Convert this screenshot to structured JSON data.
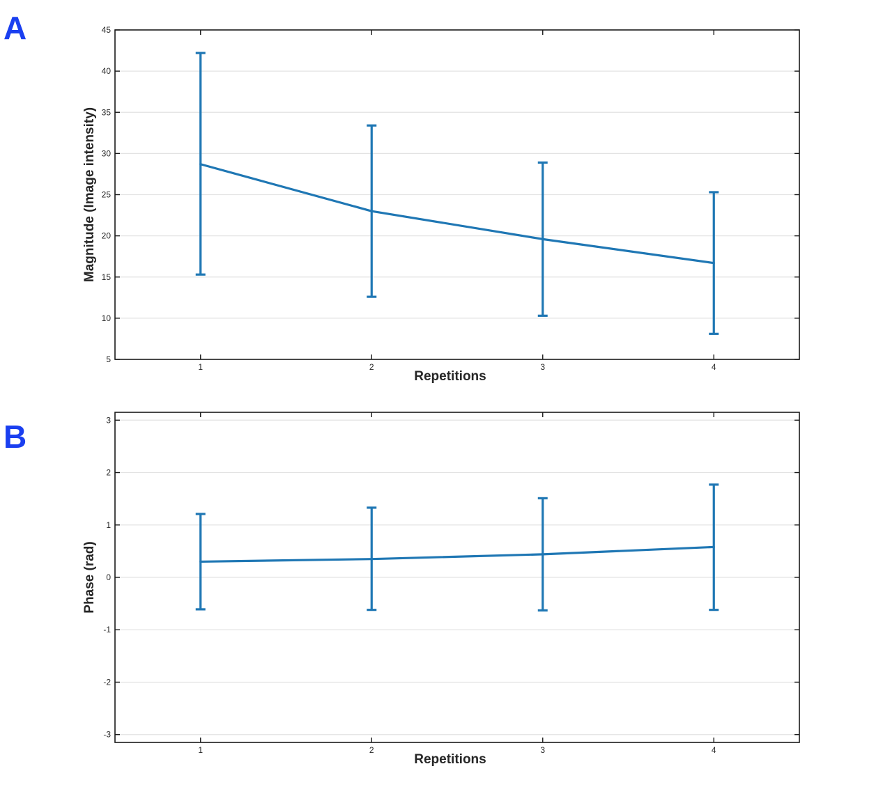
{
  "panels": [
    {
      "letter": "A"
    },
    {
      "letter": "B"
    }
  ],
  "colors": {
    "series": "#1f77b4",
    "panel_letter": "#1a3ff0",
    "grid": "#e3e3e3",
    "axes": "#1a1a1a"
  },
  "chart_data": [
    {
      "type": "line",
      "x": [
        1,
        2,
        3,
        4
      ],
      "series": [
        {
          "values": [
            28.7,
            23.0,
            19.6,
            16.7
          ],
          "error_low": [
            15.3,
            12.6,
            10.3,
            8.1
          ],
          "error_high": [
            42.2,
            33.4,
            28.9,
            25.3
          ]
        }
      ],
      "title": "",
      "xlabel": "Repetitions",
      "ylabel": "Magnitude (Image intensity)",
      "xlim": [
        0.5,
        4.5
      ],
      "ylim": [
        5,
        45
      ],
      "xticks": [
        1,
        2,
        3,
        4
      ],
      "yticks": [
        5,
        10,
        15,
        20,
        25,
        30,
        35,
        40,
        45
      ],
      "grid": "horizontal",
      "legend": "none"
    },
    {
      "type": "line",
      "x": [
        1,
        2,
        3,
        4
      ],
      "series": [
        {
          "values": [
            0.3,
            0.35,
            0.44,
            0.58
          ],
          "error_low": [
            -0.61,
            -0.62,
            -0.63,
            -0.62
          ],
          "error_high": [
            1.21,
            1.33,
            1.51,
            1.77
          ]
        }
      ],
      "title": "",
      "xlabel": "Repetitions",
      "ylabel": "Phase (rad)",
      "xlim": [
        0.5,
        4.5
      ],
      "ylim": [
        -3.15,
        3.15
      ],
      "xticks": [
        1,
        2,
        3,
        4
      ],
      "yticks": [
        -3,
        -2,
        -1,
        0,
        1,
        2,
        3
      ],
      "grid": "horizontal",
      "legend": "none"
    }
  ]
}
